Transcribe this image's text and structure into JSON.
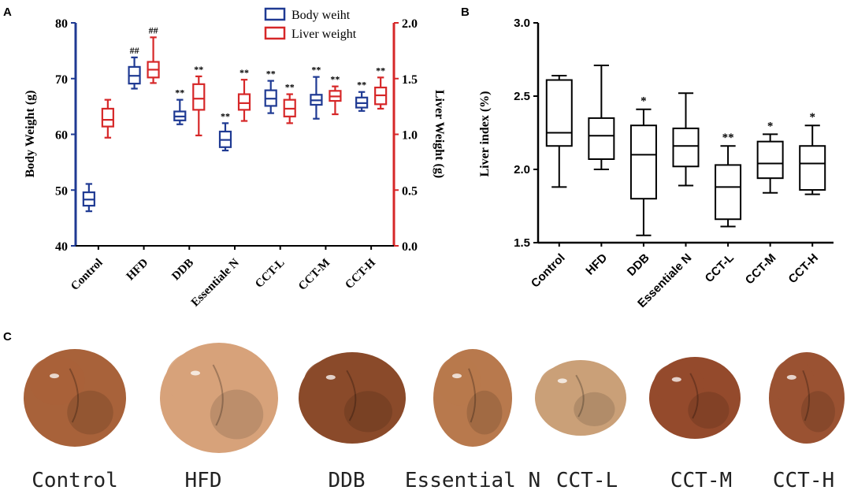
{
  "chart_data": [
    {
      "panel": "A",
      "type": "box",
      "categories": [
        "Control",
        "HFD",
        "DDB",
        "Essentiale N",
        "CCT-L",
        "CCT-M",
        "CCT-H"
      ],
      "left_axis": {
        "label": "Body Weight (g)",
        "ylim": [
          40,
          80
        ],
        "ticks": [
          "40",
          "50",
          "60",
          "70",
          "80"
        ],
        "color": "#1f3a93"
      },
      "right_axis": {
        "label": "Liver Weight (g)",
        "ylim": [
          0,
          2
        ],
        "ticks": [
          "0.0",
          "0.5",
          "1.0",
          "1.5",
          "2.0"
        ],
        "color": "#d62728"
      },
      "legend": [
        {
          "name": "Body weiht",
          "color": "#1f3a93"
        },
        {
          "name": "Liver weight",
          "color": "#d62728"
        }
      ],
      "series": [
        {
          "name": "Body weiht",
          "axis": "left",
          "color": "#1f3a93",
          "boxes": [
            {
              "min": 46.2,
              "q1": 47.2,
              "median": 48.3,
              "q3": 49.6,
              "max": 51.1,
              "sig": ""
            },
            {
              "min": 68.2,
              "q1": 69.1,
              "median": 70.5,
              "q3": 72.1,
              "max": 73.8,
              "sig": "##"
            },
            {
              "min": 61.8,
              "q1": 62.5,
              "median": 63.2,
              "q3": 64.1,
              "max": 66.2,
              "sig": "**"
            },
            {
              "min": 57.1,
              "q1": 57.7,
              "median": 59.0,
              "q3": 60.5,
              "max": 62.0,
              "sig": "**"
            },
            {
              "min": 63.8,
              "q1": 65.1,
              "median": 66.4,
              "q3": 67.9,
              "max": 69.6,
              "sig": "**"
            },
            {
              "min": 62.8,
              "q1": 65.3,
              "median": 66.1,
              "q3": 67.1,
              "max": 70.3,
              "sig": "**"
            },
            {
              "min": 64.2,
              "q1": 64.8,
              "median": 65.6,
              "q3": 66.6,
              "max": 67.6,
              "sig": "**"
            }
          ]
        },
        {
          "name": "Liver weight",
          "axis": "right",
          "color": "#d62728",
          "boxes": [
            {
              "min": 0.97,
              "q1": 1.07,
              "median": 1.13,
              "q3": 1.23,
              "max": 1.31,
              "sig": ""
            },
            {
              "min": 1.46,
              "q1": 1.51,
              "median": 1.58,
              "q3": 1.65,
              "max": 1.87,
              "sig": "##"
            },
            {
              "min": 0.99,
              "q1": 1.22,
              "median": 1.32,
              "q3": 1.45,
              "max": 1.52,
              "sig": "**"
            },
            {
              "min": 1.12,
              "q1": 1.22,
              "median": 1.28,
              "q3": 1.36,
              "max": 1.49,
              "sig": "**"
            },
            {
              "min": 1.1,
              "q1": 1.16,
              "median": 1.23,
              "q3": 1.31,
              "max": 1.36,
              "sig": "**"
            },
            {
              "min": 1.18,
              "q1": 1.3,
              "median": 1.34,
              "q3": 1.39,
              "max": 1.43,
              "sig": "**"
            },
            {
              "min": 1.23,
              "q1": 1.27,
              "median": 1.35,
              "q3": 1.42,
              "max": 1.51,
              "sig": "**"
            }
          ]
        }
      ]
    },
    {
      "panel": "B",
      "type": "box",
      "categories": [
        "Control",
        "HFD",
        "DDB",
        "Essentiale N",
        "CCT-L",
        "CCT-M",
        "CCT-H"
      ],
      "ylabel": "Liver index (%)",
      "ylim": [
        1.5,
        3.0
      ],
      "ticks": [
        "1.5",
        "2.0",
        "2.5",
        "3.0"
      ],
      "color": "#000000",
      "boxes": [
        {
          "min": 1.88,
          "q1": 2.16,
          "median": 2.25,
          "q3": 2.61,
          "max": 2.64,
          "sig": ""
        },
        {
          "min": 2.0,
          "q1": 2.07,
          "median": 2.23,
          "q3": 2.35,
          "max": 2.71,
          "sig": ""
        },
        {
          "min": 1.55,
          "q1": 1.8,
          "median": 2.1,
          "q3": 2.3,
          "max": 2.41,
          "sig": "*"
        },
        {
          "min": 1.89,
          "q1": 2.02,
          "median": 2.16,
          "q3": 2.28,
          "max": 2.52,
          "sig": ""
        },
        {
          "min": 1.61,
          "q1": 1.66,
          "median": 1.88,
          "q3": 2.03,
          "max": 2.16,
          "sig": "**"
        },
        {
          "min": 1.84,
          "q1": 1.94,
          "median": 2.04,
          "q3": 2.19,
          "max": 2.24,
          "sig": "*"
        },
        {
          "min": 1.83,
          "q1": 1.86,
          "median": 2.04,
          "q3": 2.16,
          "max": 2.3,
          "sig": "*"
        }
      ]
    }
  ],
  "panel_c": {
    "letter": "C",
    "labels": [
      "Control",
      "HFD",
      "DDB",
      "Essential N",
      "CCT-L",
      "CCT-M",
      "CCT-H"
    ],
    "liver_colors": [
      "#a8623a",
      "#d7a27a",
      "#8a4a2a",
      "#b8794d",
      "#caa078",
      "#944a2c",
      "#9a5232"
    ]
  },
  "panel_letters": {
    "a": "A",
    "b": "B"
  }
}
